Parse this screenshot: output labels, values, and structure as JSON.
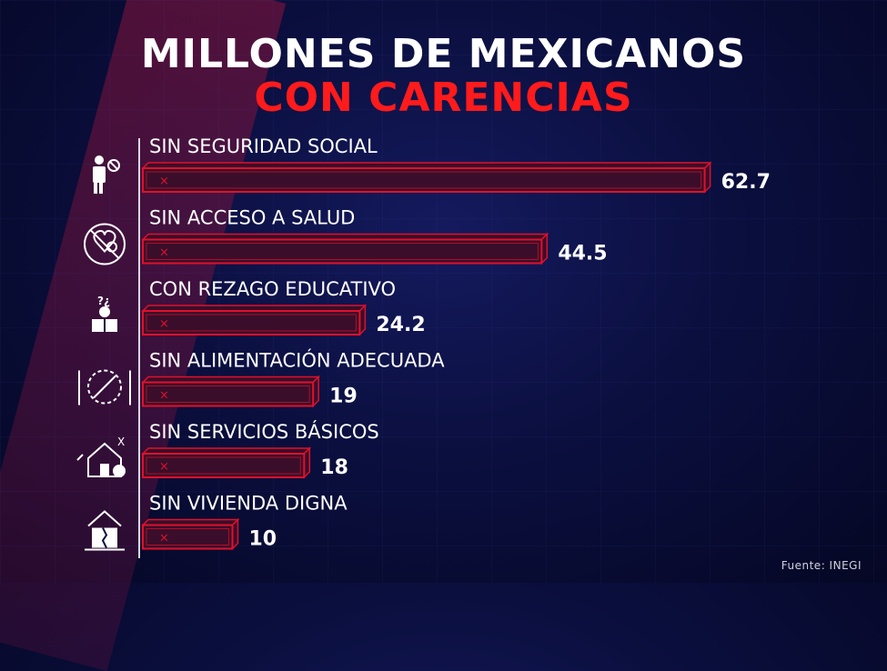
{
  "title": {
    "line1": "MILLONES DE MEXICANOS",
    "line2": "CON CARENCIAS"
  },
  "source": "Fuente: INEGI",
  "colors": {
    "bar_outline": "#e0102a",
    "bar_fill": "#3a0e2a",
    "title_accent": "#ff1b1b"
  },
  "chart_data": {
    "type": "bar",
    "orientation": "horizontal",
    "categories": [
      "SIN SEGURIDAD SOCIAL",
      "SIN ACCESO A SALUD",
      "CON REZAGO EDUCATIVO",
      "SIN ALIMENTACIÓN ADECUADA",
      "SIN SERVICIOS BÁSICOS",
      "SIN VIVIENDA DIGNA"
    ],
    "values": [
      62.7,
      44.5,
      24.2,
      19,
      18,
      10
    ],
    "value_labels": [
      "62.7",
      "44.5",
      "24.2",
      "19",
      "18",
      "10"
    ],
    "icons": [
      "worker-no-insurance-icon",
      "no-health-icon",
      "education-lag-icon",
      "no-food-icon",
      "no-services-house-icon",
      "damaged-house-icon"
    ],
    "grid": false
  }
}
